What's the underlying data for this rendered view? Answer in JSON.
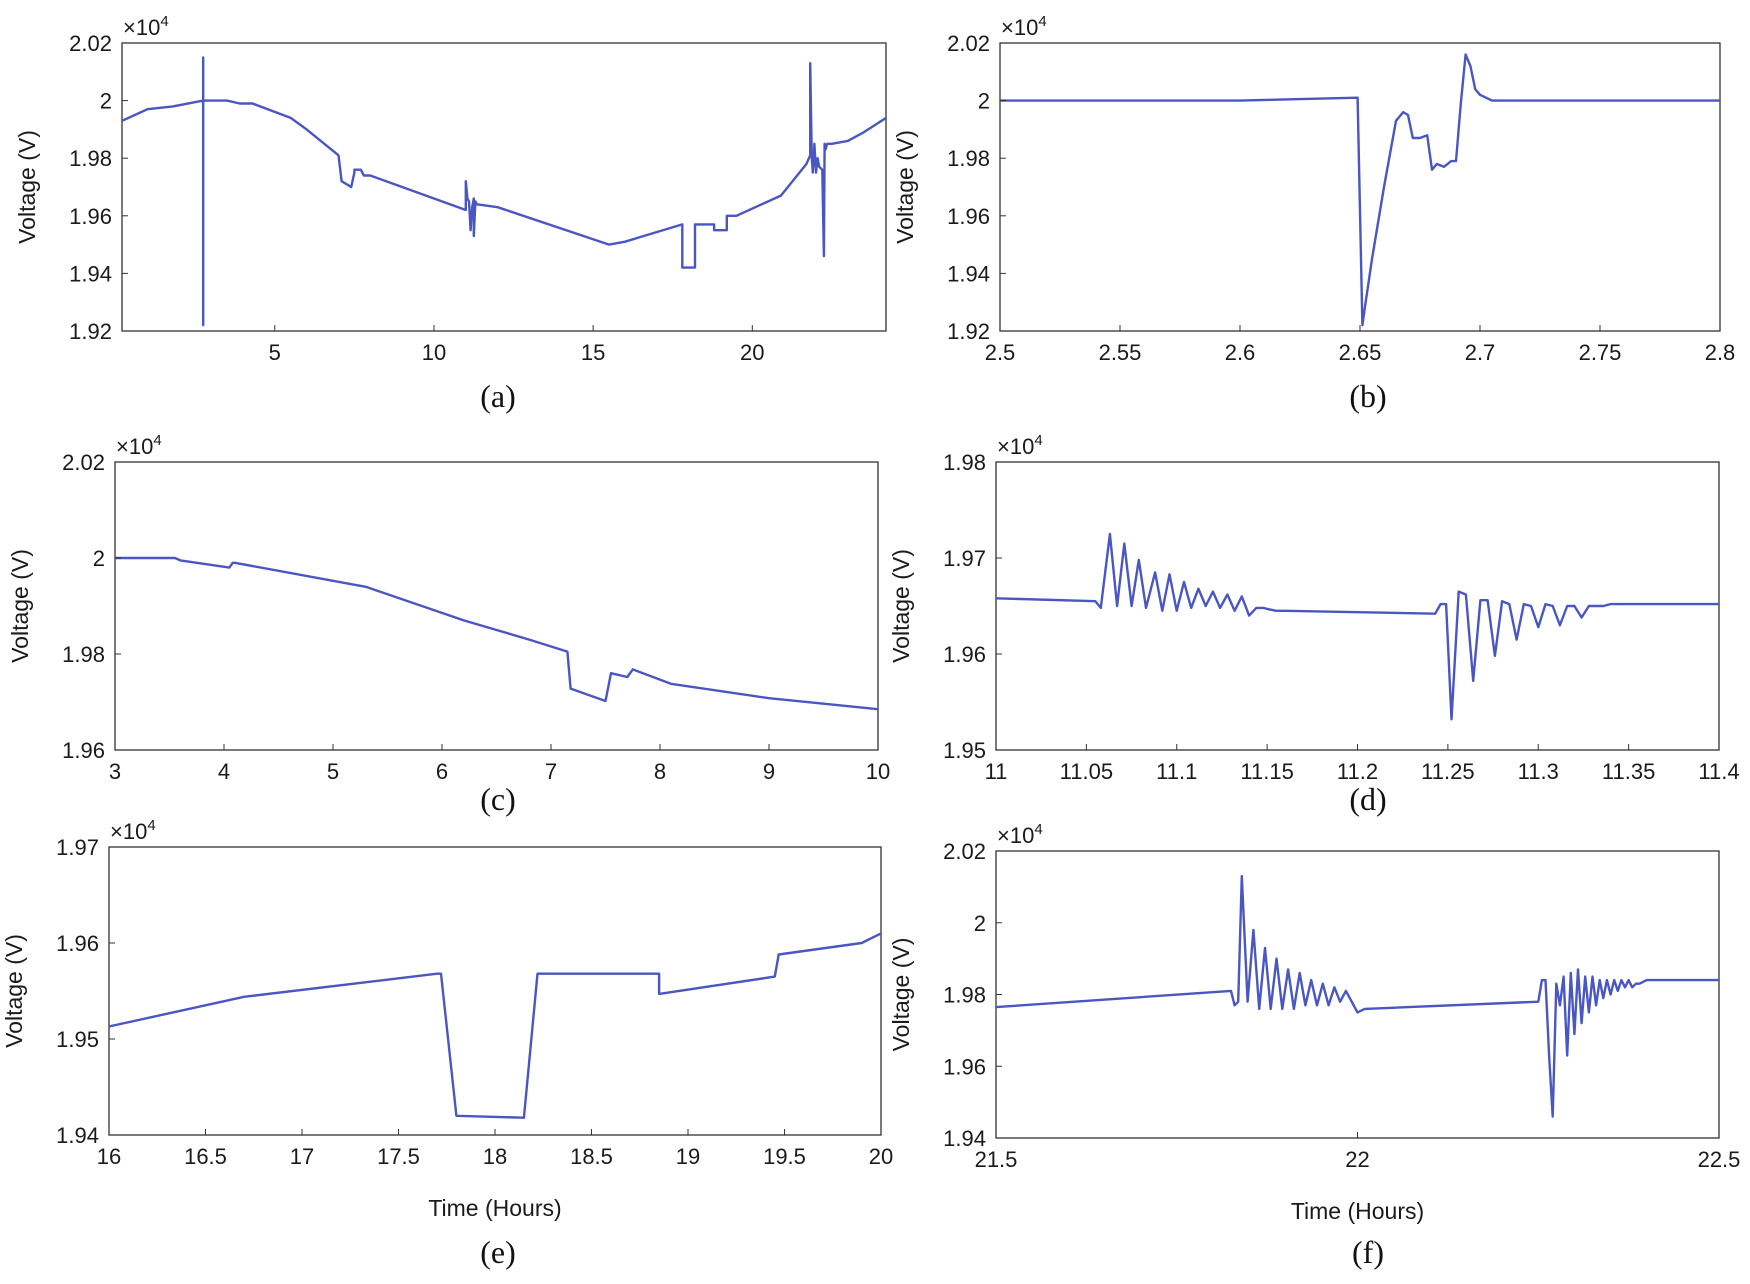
{
  "colors": {
    "line": "#4a56c2",
    "axis": "#333333"
  },
  "chart_data": [
    {
      "caption": "(a)",
      "type": "line",
      "title": "",
      "ylabel": "Voltage (V)",
      "xlabel": "",
      "exponent_label": "×10",
      "exponent_power": "4",
      "xlim": [
        0.2,
        24.2
      ],
      "ylim": [
        1.92,
        2.02
      ],
      "xticks": [
        5,
        10,
        15,
        20
      ],
      "xtick_labels": [
        "5",
        "10",
        "15",
        "20"
      ],
      "yticks": [
        1.92,
        1.94,
        1.96,
        1.98,
        2.0,
        2.02
      ],
      "ytick_labels": [
        "1.92",
        "1.94",
        "1.96",
        "1.98",
        "2",
        "2.02"
      ],
      "series": [
        {
          "name": "Voltage",
          "x": [
            0.2,
            1,
            1.8,
            2.75,
            2.75,
            2.75,
            2.75,
            2.85,
            3.2,
            3.5,
            3.9,
            4,
            4.1,
            4.3,
            5.5,
            6,
            7,
            7.1,
            7.1,
            7.4,
            7.5,
            7.5,
            7.7,
            7.8,
            8,
            9,
            10,
            11,
            11,
            11.05,
            11.1,
            11.15,
            11.2,
            11.25,
            11.25,
            11.3,
            11.35,
            12,
            15.5,
            16,
            17.8,
            17.8,
            18.2,
            18.2,
            18.8,
            18.8,
            19.2,
            19.2,
            19.5,
            20.9,
            21.7,
            21.82,
            21.82,
            21.87,
            21.9,
            21.95,
            22.0,
            22.05,
            22.1,
            22.2,
            22.25,
            22.27,
            22.3,
            22.35,
            22.5,
            23,
            23.5,
            24.2
          ],
          "y": [
            1.993,
            1.997,
            1.998,
            2.0,
            1.922,
            2.015,
            2.0,
            2.0,
            2.0,
            2.0,
            1.999,
            1.999,
            1.999,
            1.999,
            1.994,
            1.99,
            1.981,
            1.972,
            1.972,
            1.97,
            1.975,
            1.976,
            1.976,
            1.974,
            1.974,
            1.97,
            1.966,
            1.962,
            1.972,
            1.966,
            1.965,
            1.955,
            1.963,
            1.966,
            1.953,
            1.965,
            1.964,
            1.963,
            1.95,
            1.951,
            1.957,
            1.942,
            1.942,
            1.957,
            1.957,
            1.955,
            1.955,
            1.96,
            1.96,
            1.967,
            1.978,
            1.981,
            2.013,
            1.98,
            1.975,
            1.985,
            1.975,
            1.98,
            1.977,
            1.976,
            1.946,
            1.985,
            1.983,
            1.985,
            1.985,
            1.986,
            1.989,
            1.994
          ]
        }
      ]
    },
    {
      "caption": "(b)",
      "type": "line",
      "title": "",
      "ylabel": "Voltage (V)",
      "xlabel": "",
      "exponent_label": "×10",
      "exponent_power": "4",
      "xlim": [
        2.5,
        2.8
      ],
      "ylim": [
        1.92,
        2.02
      ],
      "xticks": [
        2.5,
        2.55,
        2.6,
        2.65,
        2.7,
        2.75,
        2.8
      ],
      "xtick_labels": [
        "2.5",
        "2.55",
        "2.6",
        "2.65",
        "2.7",
        "2.75",
        "2.8"
      ],
      "yticks": [
        1.92,
        1.94,
        1.96,
        1.98,
        2.0,
        2.02
      ],
      "ytick_labels": [
        "1.92",
        "1.94",
        "1.96",
        "1.98",
        "2",
        "2.02"
      ],
      "series": [
        {
          "name": "Voltage",
          "x": [
            2.5,
            2.55,
            2.6,
            2.649,
            2.651,
            2.652,
            2.655,
            2.66,
            2.665,
            2.668,
            2.67,
            2.672,
            2.675,
            2.678,
            2.68,
            2.682,
            2.685,
            2.688,
            2.69,
            2.692,
            2.694,
            2.696,
            2.698,
            2.7,
            2.705,
            2.75,
            2.8
          ],
          "y": [
            2.0,
            2.0,
            2.0,
            2.001,
            1.922,
            1.928,
            1.945,
            1.97,
            1.993,
            1.996,
            1.995,
            1.987,
            1.987,
            1.988,
            1.976,
            1.978,
            1.977,
            1.979,
            1.979,
            1.999,
            2.016,
            2.012,
            2.004,
            2.002,
            2.0,
            2.0,
            2.0
          ]
        }
      ]
    },
    {
      "caption": "(c)",
      "type": "line",
      "title": "",
      "ylabel": "Voltage (V)",
      "xlabel": "",
      "exponent_label": "×10",
      "exponent_power": "4",
      "xlim": [
        3,
        10
      ],
      "ylim": [
        1.96,
        2.02
      ],
      "xticks": [
        3,
        4,
        5,
        6,
        7,
        8,
        9,
        10
      ],
      "xtick_labels": [
        "3",
        "4",
        "5",
        "6",
        "7",
        "8",
        "9",
        "10"
      ],
      "yticks": [
        1.96,
        1.98,
        2.0,
        2.02
      ],
      "ytick_labels": [
        "1.96",
        "1.98",
        "2",
        "2.02"
      ],
      "series": [
        {
          "name": "Voltage",
          "x": [
            3,
            3.5,
            3.55,
            3.6,
            4.05,
            4.08,
            4.1,
            5.3,
            6.2,
            6.8,
            7.15,
            7.18,
            7.5,
            7.55,
            7.7,
            7.75,
            8.1,
            9,
            10
          ],
          "y": [
            2.0,
            2.0,
            2.0,
            1.9995,
            1.998,
            1.999,
            1.999,
            1.994,
            1.987,
            1.983,
            1.9805,
            1.9728,
            1.9702,
            1.976,
            1.9752,
            1.9768,
            1.9738,
            1.9708,
            1.9685
          ]
        }
      ]
    },
    {
      "caption": "(d)",
      "type": "line",
      "title": "",
      "ylabel": "Voltage (V)",
      "xlabel": "",
      "exponent_label": "×10",
      "exponent_power": "4",
      "xlim": [
        11,
        11.4
      ],
      "ylim": [
        1.95,
        1.98
      ],
      "xticks": [
        11,
        11.05,
        11.1,
        11.15,
        11.2,
        11.25,
        11.3,
        11.35,
        11.4
      ],
      "xtick_labels": [
        "11",
        "11.05",
        "11.1",
        "11.15",
        "11.2",
        "11.25",
        "11.3",
        "11.35",
        "11.4"
      ],
      "yticks": [
        1.95,
        1.96,
        1.97,
        1.98
      ],
      "ytick_labels": [
        "1.95",
        "1.96",
        "1.97",
        "1.98"
      ],
      "series": [
        {
          "name": "Voltage",
          "x": [
            11,
            11.055,
            11.058,
            11.063,
            11.067,
            11.071,
            11.075,
            11.079,
            11.083,
            11.088,
            11.092,
            11.096,
            11.1,
            11.104,
            11.108,
            11.112,
            11.116,
            11.12,
            11.124,
            11.128,
            11.132,
            11.136,
            11.14,
            11.144,
            11.148,
            11.15,
            11.155,
            11.16,
            11.243,
            11.246,
            11.249,
            11.252,
            11.256,
            11.26,
            11.264,
            11.268,
            11.272,
            11.276,
            11.28,
            11.284,
            11.288,
            11.292,
            11.296,
            11.3,
            11.304,
            11.308,
            11.312,
            11.316,
            11.32,
            11.324,
            11.328,
            11.332,
            11.336,
            11.34,
            11.345,
            11.4
          ],
          "y": [
            1.9658,
            1.9655,
            1.9648,
            1.9725,
            1.965,
            1.9715,
            1.965,
            1.9698,
            1.9648,
            1.9685,
            1.9645,
            1.9683,
            1.9645,
            1.9675,
            1.9648,
            1.9668,
            1.965,
            1.9665,
            1.9648,
            1.9662,
            1.9645,
            1.966,
            1.964,
            1.9648,
            1.9648,
            1.9647,
            1.9645,
            1.9645,
            1.9642,
            1.9652,
            1.9652,
            1.9532,
            1.9665,
            1.9662,
            1.9572,
            1.9656,
            1.9656,
            1.9598,
            1.9655,
            1.9652,
            1.9615,
            1.9652,
            1.965,
            1.9628,
            1.9652,
            1.965,
            1.963,
            1.965,
            1.965,
            1.9638,
            1.965,
            1.965,
            1.965,
            1.9652,
            1.9652,
            1.9652
          ]
        }
      ]
    },
    {
      "caption": "(e)",
      "type": "line",
      "title": "",
      "ylabel": "Voltage (V)",
      "xlabel": "Time (Hours)",
      "exponent_label": "×10",
      "exponent_power": "4",
      "xlim": [
        16,
        20
      ],
      "ylim": [
        1.94,
        1.97
      ],
      "xticks": [
        16,
        16.5,
        17,
        17.5,
        18,
        18.5,
        19,
        19.5,
        20
      ],
      "xtick_labels": [
        "16",
        "16.5",
        "17",
        "17.5",
        "18",
        "18.5",
        "19",
        "19.5",
        "20"
      ],
      "yticks": [
        1.94,
        1.95,
        1.96,
        1.97
      ],
      "ytick_labels": [
        "1.94",
        "1.95",
        "1.96",
        "1.97"
      ],
      "series": [
        {
          "name": "Voltage",
          "x": [
            16,
            16.7,
            17.7,
            17.72,
            17.8,
            18.15,
            18.22,
            18.85,
            18.85,
            19.45,
            19.47,
            19.9,
            20
          ],
          "y": [
            1.9513,
            1.9544,
            1.9568,
            1.9568,
            1.942,
            1.9418,
            1.9568,
            1.9568,
            1.9547,
            1.9565,
            1.9588,
            1.96,
            1.961
          ]
        }
      ]
    },
    {
      "caption": "(f)",
      "type": "line",
      "title": "",
      "ylabel": "Voltage (V)",
      "xlabel": "Time (Hours)",
      "exponent_label": "×10",
      "exponent_power": "4",
      "xlim": [
        21.5,
        22.5
      ],
      "ylim": [
        1.94,
        2.02
      ],
      "xticks": [
        21.5,
        22,
        22.5
      ],
      "xtick_labels": [
        "21.5",
        "22",
        "22.5"
      ],
      "yticks": [
        1.94,
        1.96,
        1.98,
        2.0,
        2.02
      ],
      "ytick_labels": [
        "1.94",
        "1.96",
        "1.98",
        "2",
        "2.02"
      ],
      "series": [
        {
          "name": "Voltage",
          "x": [
            21.5,
            21.825,
            21.83,
            21.835,
            21.84,
            21.848,
            21.856,
            21.864,
            21.872,
            21.88,
            21.888,
            21.896,
            21.904,
            21.912,
            21.92,
            21.928,
            21.936,
            21.944,
            21.952,
            21.96,
            21.968,
            21.976,
            21.984,
            21.992,
            22.0,
            22.01,
            22.25,
            22.255,
            22.26,
            22.265,
            22.27,
            22.275,
            22.28,
            22.285,
            22.29,
            22.295,
            22.3,
            22.305,
            22.31,
            22.315,
            22.32,
            22.325,
            22.33,
            22.335,
            22.34,
            22.345,
            22.35,
            22.355,
            22.36,
            22.365,
            22.37,
            22.375,
            22.38,
            22.385,
            22.39,
            22.4,
            22.5
          ],
          "y": [
            1.9765,
            1.981,
            1.977,
            1.978,
            2.013,
            1.978,
            1.998,
            1.976,
            1.993,
            1.976,
            1.99,
            1.976,
            1.987,
            1.976,
            1.986,
            1.977,
            1.984,
            1.977,
            1.983,
            1.977,
            1.982,
            1.978,
            1.981,
            1.978,
            1.975,
            1.976,
            1.978,
            1.984,
            1.984,
            1.963,
            1.946,
            1.983,
            1.977,
            1.985,
            1.963,
            1.986,
            1.969,
            1.987,
            1.972,
            1.985,
            1.975,
            1.985,
            1.977,
            1.984,
            1.979,
            1.984,
            1.98,
            1.984,
            1.981,
            1.984,
            1.982,
            1.984,
            1.982,
            1.983,
            1.983,
            1.984,
            1.984
          ]
        }
      ]
    }
  ]
}
